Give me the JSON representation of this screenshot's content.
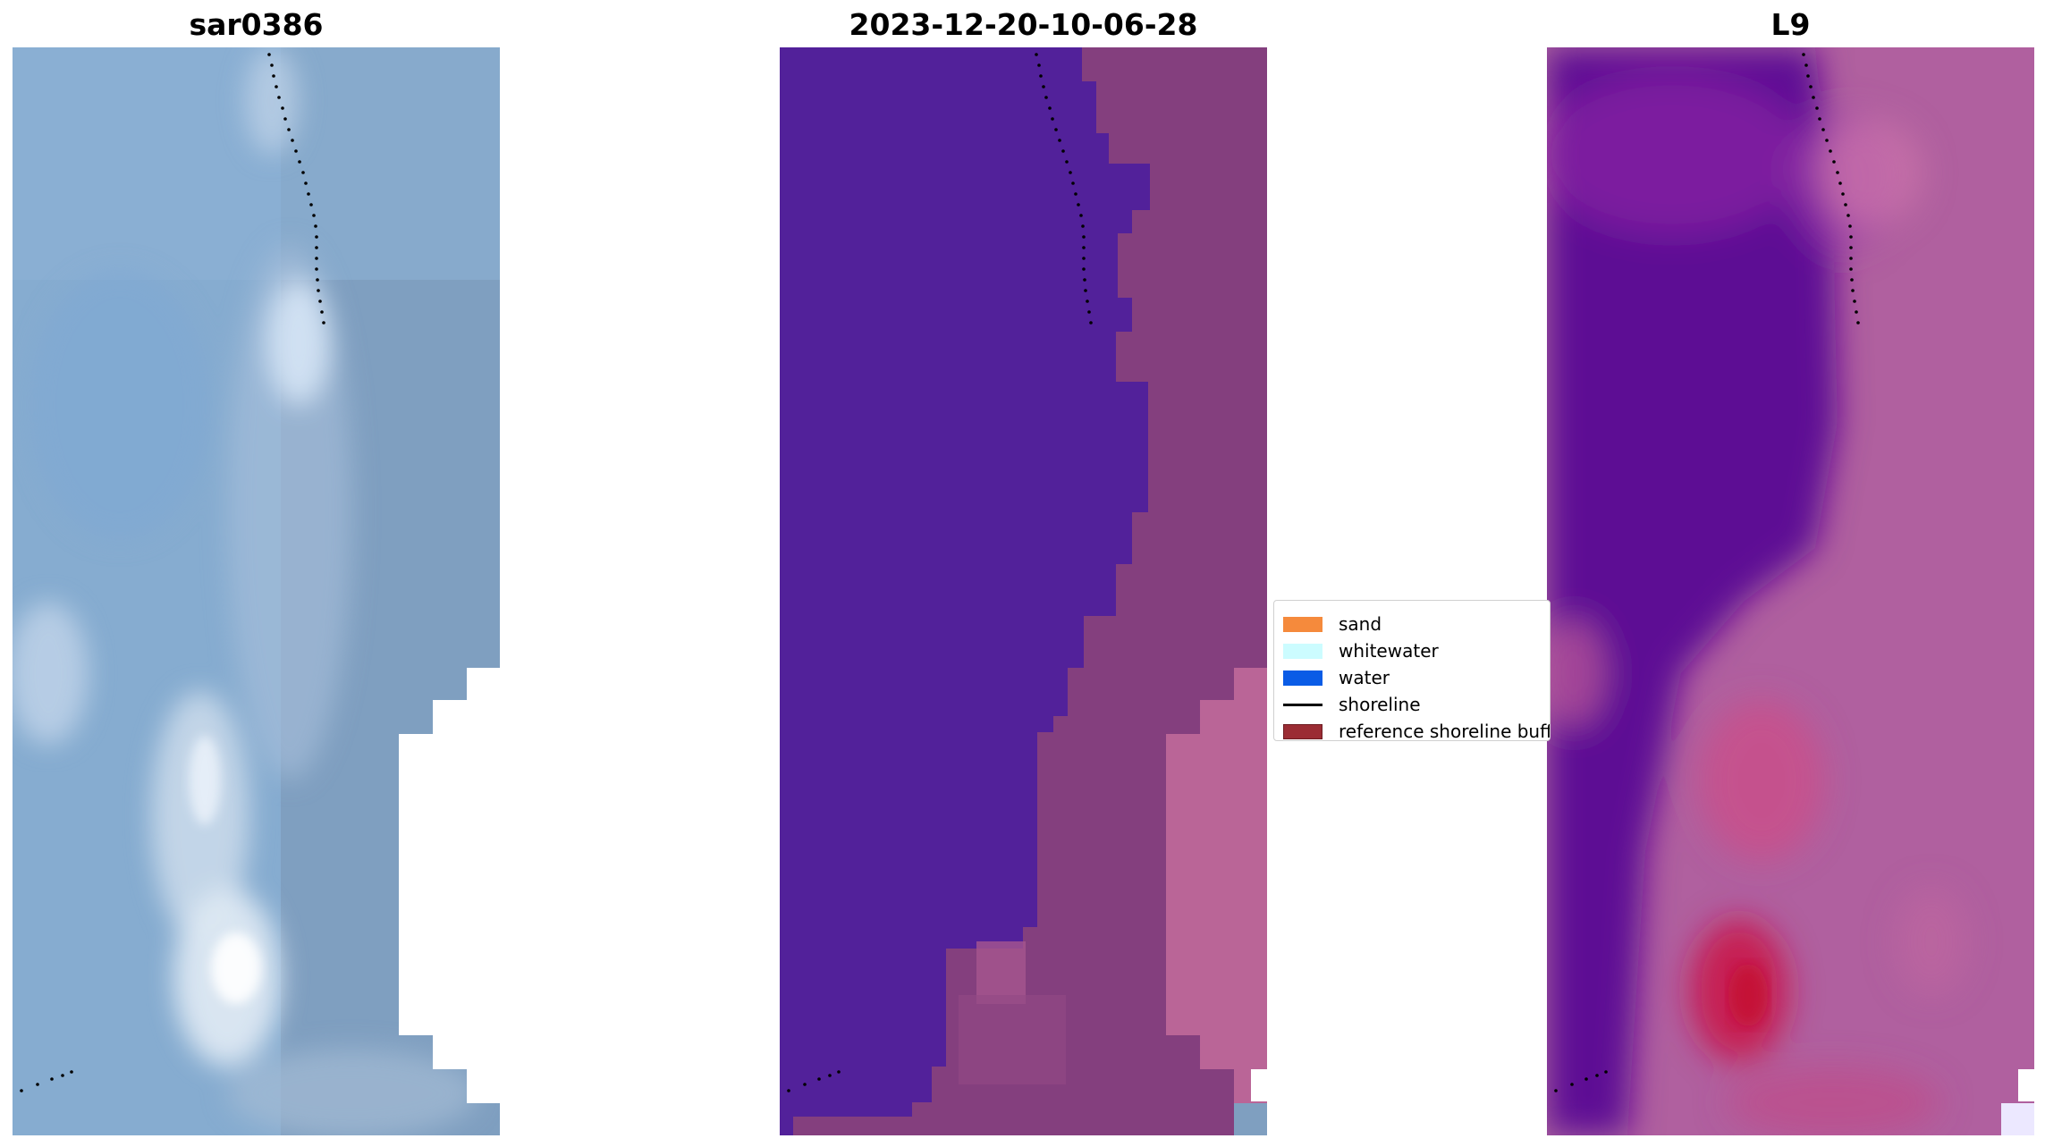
{
  "panels": [
    {
      "title": "sar0386"
    },
    {
      "title": "2023-12-20-10-06-28"
    },
    {
      "title": "L9"
    }
  ],
  "legend": {
    "items": [
      {
        "label": "sand",
        "color": "#f58a3c",
        "kind": "patch"
      },
      {
        "label": "whitewater",
        "color": "#ccfcff",
        "kind": "patch"
      },
      {
        "label": "water",
        "color": "#0a5ce6",
        "kind": "patch"
      },
      {
        "label": "shoreline",
        "color": "#000000",
        "kind": "line"
      },
      {
        "label": "reference shoreline buffer",
        "color": "#9b2c34",
        "kind": "patch"
      }
    ]
  },
  "colors": {
    "rgb_base": "#86acd0",
    "rgb_right_strip": "#7f9fbf",
    "class_water": "#52219a",
    "class_land": "#843f7e",
    "class_land_light": "#ba6597",
    "ndwi_water": "#5d0994",
    "ndwi_land": "#b0609f",
    "ndwi_hot": "#c9184a"
  }
}
